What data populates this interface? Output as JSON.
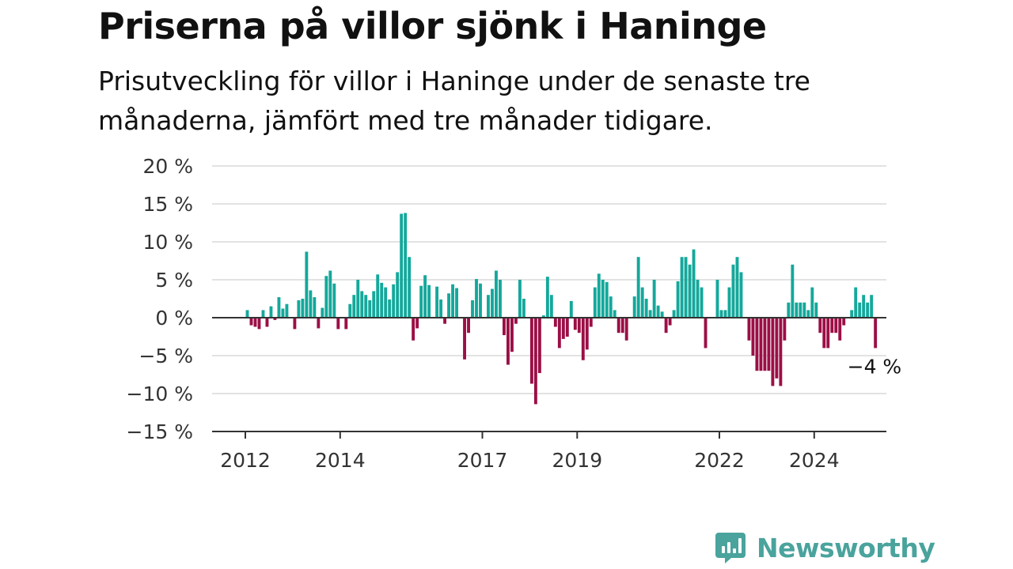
{
  "header": {
    "title": "Priserna på villor sjönk i Haninge",
    "subtitle": "Prisutveckling för villor i Haninge under de senaste tre månaderna, jämfört med tre månader tidigare."
  },
  "brand": {
    "name": "Newsworthy",
    "icon": "newsworthy-logo-icon",
    "color": "#4aa39d"
  },
  "chart_data": {
    "type": "bar",
    "title": "",
    "xlabel": "",
    "ylabel": "",
    "ylim": [
      -15,
      20
    ],
    "yticks": [
      20,
      15,
      10,
      5,
      0,
      -5,
      -10,
      -15
    ],
    "ytick_labels": [
      "20 %",
      "15 %",
      "10 %",
      "5 %",
      "0 %",
      "−5 %",
      "−10 %",
      "−15 %"
    ],
    "xticks": [
      2012,
      2014,
      2017,
      2019,
      2022,
      2024
    ],
    "xtick_labels": [
      "2012",
      "2014",
      "2017",
      "2019",
      "2022",
      "2024"
    ],
    "grid": true,
    "legend": "none",
    "colors": {
      "positive": "#14a89b",
      "negative": "#9b0f46"
    },
    "annotation": {
      "text": "−4 %",
      "target": "last"
    },
    "x_start": "2012-01",
    "frequency": "monthly",
    "values": [
      1,
      -1,
      -1.2,
      -1.5,
      1,
      -1.2,
      1.5,
      -0.3,
      2.7,
      1.2,
      1.8,
      0,
      -1.5,
      2.3,
      2.5,
      8.7,
      3.6,
      2.7,
      -1.4,
      1.3,
      5.5,
      6.2,
      4.5,
      -1.5,
      0,
      -1.5,
      1.8,
      3,
      5,
      3.5,
      3,
      2.3,
      3.5,
      5.7,
      4.6,
      4,
      2.4,
      4.4,
      6,
      13.7,
      13.8,
      8,
      -3,
      -1.4,
      4.2,
      5.6,
      4.3,
      0,
      4.1,
      2.4,
      -0.8,
      3.2,
      4.4,
      3.9,
      0,
      -5.5,
      -2,
      2.3,
      5.1,
      4.5,
      0,
      3,
      3.8,
      6.2,
      5,
      -2.3,
      -6.2,
      -4.5,
      -0.8,
      5,
      2.5,
      0,
      -8.7,
      -11.4,
      -7.3,
      0.3,
      5.4,
      3,
      -1.2,
      -4,
      -2.8,
      -2.5,
      2.2,
      -1.6,
      -2,
      -5.6,
      -4.2,
      -1.2,
      4,
      5.8,
      5,
      4.7,
      2.8,
      1,
      -2,
      -2,
      -3,
      0,
      2.8,
      8,
      4,
      2.5,
      1,
      5,
      1.6,
      0.8,
      -2,
      -1,
      1,
      4.8,
      8,
      8,
      7,
      9,
      5,
      4,
      -4,
      0,
      0,
      5,
      1,
      1,
      4,
      7,
      8,
      6,
      0,
      -3,
      -5,
      -7,
      -7,
      -7,
      -7,
      -9,
      -8,
      -9,
      -3,
      2,
      7,
      2,
      2,
      2,
      1,
      4,
      2,
      -2,
      -4,
      -4,
      -2,
      -2,
      -3,
      -1,
      0,
      1,
      4,
      2,
      3,
      2,
      3,
      -4
    ]
  }
}
